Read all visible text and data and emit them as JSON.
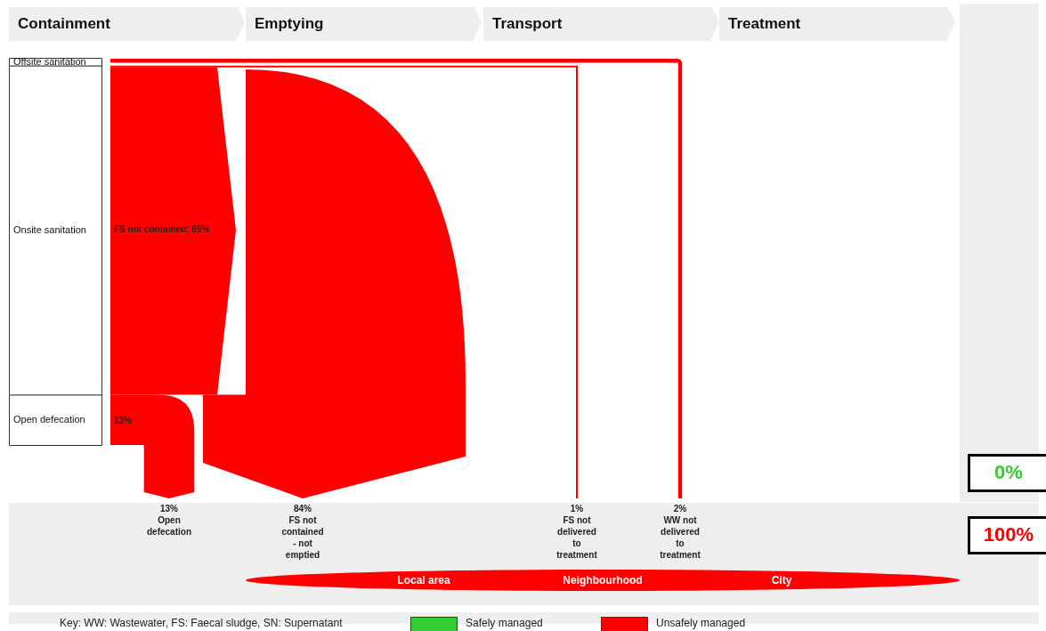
{
  "chart_data": {
    "type": "other",
    "categories": [
      "Open defecation",
      "FS not contained - not emptied",
      "FS not delivered to treatment",
      "WW not delivered to treatment"
    ],
    "series": [
      {
        "name": "Safely managed",
        "color": "#33cc33",
        "values": [
          null,
          null,
          null,
          null
        ]
      },
      {
        "name": "Unsafely managed",
        "color": "#ff0000",
        "values": [
          13,
          84,
          1,
          2
        ],
        "value_labels": [
          "13%",
          "84%",
          "1%",
          "2%"
        ]
      }
    ],
    "legend": "bottom",
    "annotations": [
      "Containment",
      "Emptying",
      "Transport",
      "Treatment",
      "Offsite sanitation",
      "Onsite sanitation",
      "Open defecation",
      "FS not contained: 85%",
      "13%",
      "0%",
      "100%",
      "Local area",
      "Neighbourhood",
      "City",
      "Key: WW: Wastewater, FS: Faecal sludge, SN: Supernatant"
    ]
  }
}
